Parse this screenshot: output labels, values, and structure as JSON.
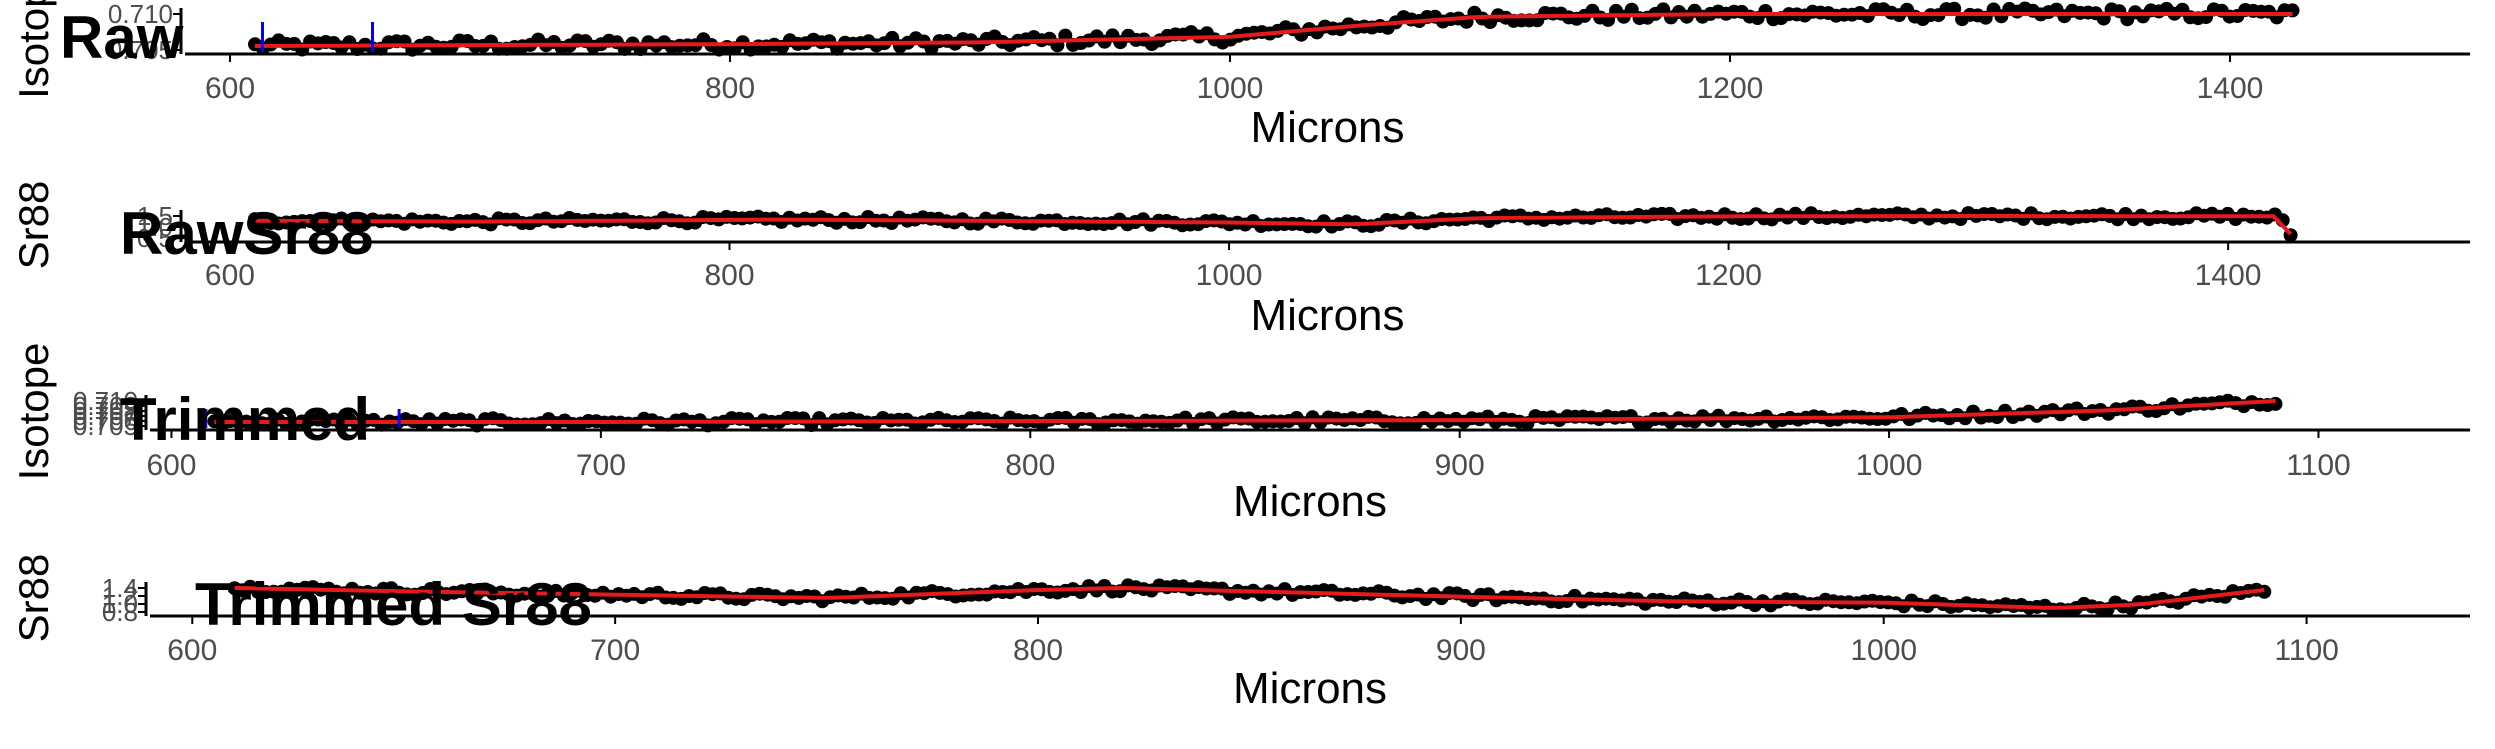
{
  "colors": {
    "points": "#000000",
    "smooth": "#e41a1c",
    "marker": "#0000ff",
    "axis": "#000000",
    "tick_text": "#4d4d4d"
  },
  "chart_data": [
    {
      "type": "scatter",
      "title": "Raw",
      "xlabel": "Microns",
      "ylabel": "Isotope",
      "xlim": [
        582,
        1460
      ],
      "xticks": [
        "600",
        "800",
        "1000",
        "1200",
        "1400"
      ],
      "yticks": [
        "0.705",
        "0.710"
      ],
      "markers_x": [
        613,
        657
      ],
      "series": [
        {
          "x": [
            610,
            700,
            800,
            900,
            1000,
            1050,
            1100,
            1200,
            1300,
            1400,
            1425
          ],
          "y": [
            0.7048,
            0.7049,
            0.705,
            0.7052,
            0.7058,
            0.707,
            0.708,
            0.7083,
            0.7083,
            0.7083,
            0.7083
          ]
        }
      ]
    },
    {
      "type": "scatter",
      "title": "RawSr88",
      "xlabel": "Microns",
      "ylabel": "Sr88",
      "xlim": [
        582,
        1460
      ],
      "xticks": [
        "600",
        "800",
        "1000",
        "1200",
        "1400"
      ],
      "yticks": [
        "0.5",
        "1.0",
        "1.5"
      ],
      "series": [
        {
          "x": [
            610,
            700,
            800,
            820,
            900,
            1000,
            1050,
            1100,
            1200,
            1300,
            1420,
            1425
          ],
          "y": [
            1.05,
            1.0,
            1.1,
            1.12,
            1.05,
            0.95,
            0.85,
            1.2,
            1.3,
            1.32,
            1.3,
            0.3
          ]
        }
      ]
    },
    {
      "type": "scatter",
      "title": "Trimmed",
      "xlabel": "Microns",
      "ylabel": "Isotope",
      "xlim": [
        595,
        1112
      ],
      "xticks": [
        "600",
        "700",
        "800",
        "900",
        "1000",
        "1100"
      ],
      "yticks": [
        "0.705",
        "0.706",
        "0.707",
        "0.708",
        "0.709",
        "0.710"
      ],
      "markers_x": [
        608,
        653
      ],
      "series": [
        {
          "x": [
            610,
            700,
            800,
            900,
            1000,
            1050,
            1090
          ],
          "y": [
            0.705,
            0.705,
            0.7051,
            0.7052,
            0.7055,
            0.7062,
            0.7072
          ]
        }
      ]
    },
    {
      "type": "scatter",
      "title": "Trimmed Sr88",
      "xlabel": "Microns",
      "ylabel": "Sr88",
      "xlim": [
        590,
        1115
      ],
      "xticks": [
        "600",
        "700",
        "800",
        "900",
        "1000",
        "1100"
      ],
      "yticks": [
        "0.8",
        "1.0",
        "1.2",
        "1.4"
      ],
      "series": [
        {
          "x": [
            610,
            650,
            700,
            750,
            800,
            820,
            850,
            900,
            950,
            1000,
            1040,
            1060,
            1090
          ],
          "y": [
            1.15,
            1.1,
            1.05,
            1.0,
            1.12,
            1.15,
            1.1,
            1.02,
            0.95,
            0.93,
            0.85,
            0.9,
            1.12
          ]
        }
      ]
    }
  ]
}
